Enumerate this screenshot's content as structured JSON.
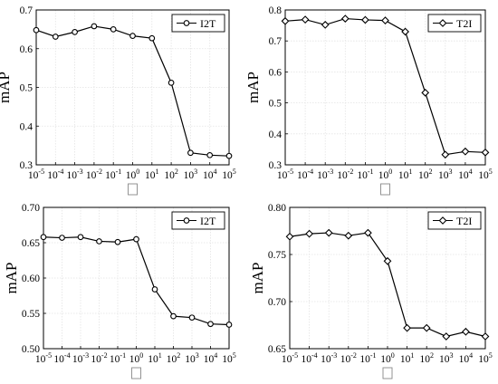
{
  "chart_data": [
    {
      "type": "line",
      "xlabel": "□",
      "ylabel": "mAP",
      "x_ticks": [
        "10^-5",
        "10^-4",
        "10^-3",
        "10^-2",
        "10^-1",
        "10^0",
        "10^1",
        "10^2",
        "10^3",
        "10^4",
        "10^5"
      ],
      "ylim": [
        0.3,
        0.7
      ],
      "y_ticks": [
        "0.3",
        "0.4",
        "0.5",
        "0.6",
        "0.7"
      ],
      "grid": true,
      "legend_position": "top-right",
      "series": [
        {
          "name": "I2T",
          "marker": "circle",
          "values": [
            0.648,
            0.631,
            0.643,
            0.658,
            0.65,
            0.633,
            0.627,
            0.512,
            0.331,
            0.325,
            0.323
          ]
        }
      ]
    },
    {
      "type": "line",
      "xlabel": "□",
      "ylabel": "mAP",
      "x_ticks": [
        "10^-5",
        "10^-4",
        "10^-3",
        "10^-2",
        "10^-1",
        "10^0",
        "10^1",
        "10^2",
        "10^3",
        "10^4",
        "10^5"
      ],
      "ylim": [
        0.3,
        0.8
      ],
      "y_ticks": [
        "0.3",
        "0.4",
        "0.5",
        "0.6",
        "0.7",
        "0.8"
      ],
      "grid": true,
      "legend_position": "top-right",
      "series": [
        {
          "name": "T2I",
          "marker": "diamond",
          "values": [
            0.764,
            0.769,
            0.752,
            0.772,
            0.768,
            0.766,
            0.73,
            0.533,
            0.333,
            0.343,
            0.34
          ]
        }
      ]
    },
    {
      "type": "line",
      "xlabel": "□",
      "ylabel": "mAP",
      "x_ticks": [
        "10^-5",
        "10^-4",
        "10^-3",
        "10^-2",
        "10^-1",
        "10^0",
        "10^1",
        "10^2",
        "10^3",
        "10^4",
        "10^5"
      ],
      "ylim": [
        0.5,
        0.7
      ],
      "y_ticks": [
        "0.50",
        "0.55",
        "0.60",
        "0.65",
        "0.70"
      ],
      "grid": true,
      "legend_position": "top-right",
      "series": [
        {
          "name": "I2T",
          "marker": "circle",
          "values": [
            0.658,
            0.657,
            0.658,
            0.652,
            0.651,
            0.655,
            0.584,
            0.546,
            0.544,
            0.535,
            0.534
          ]
        }
      ]
    },
    {
      "type": "line",
      "xlabel": "□",
      "ylabel": "mAP",
      "x_ticks": [
        "10^-5",
        "10^-4",
        "10^-3",
        "10^-2",
        "10^-1",
        "10^0",
        "10^1",
        "10^2",
        "10^3",
        "10^4",
        "10^5"
      ],
      "ylim": [
        0.65,
        0.8
      ],
      "y_ticks": [
        "0.65",
        "0.70",
        "0.75",
        "0.80"
      ],
      "grid": true,
      "legend_position": "top-right",
      "series": [
        {
          "name": "T2I",
          "marker": "diamond",
          "values": [
            0.769,
            0.772,
            0.773,
            0.77,
            0.773,
            0.743,
            0.672,
            0.672,
            0.663,
            0.668,
            0.663
          ]
        }
      ]
    }
  ]
}
